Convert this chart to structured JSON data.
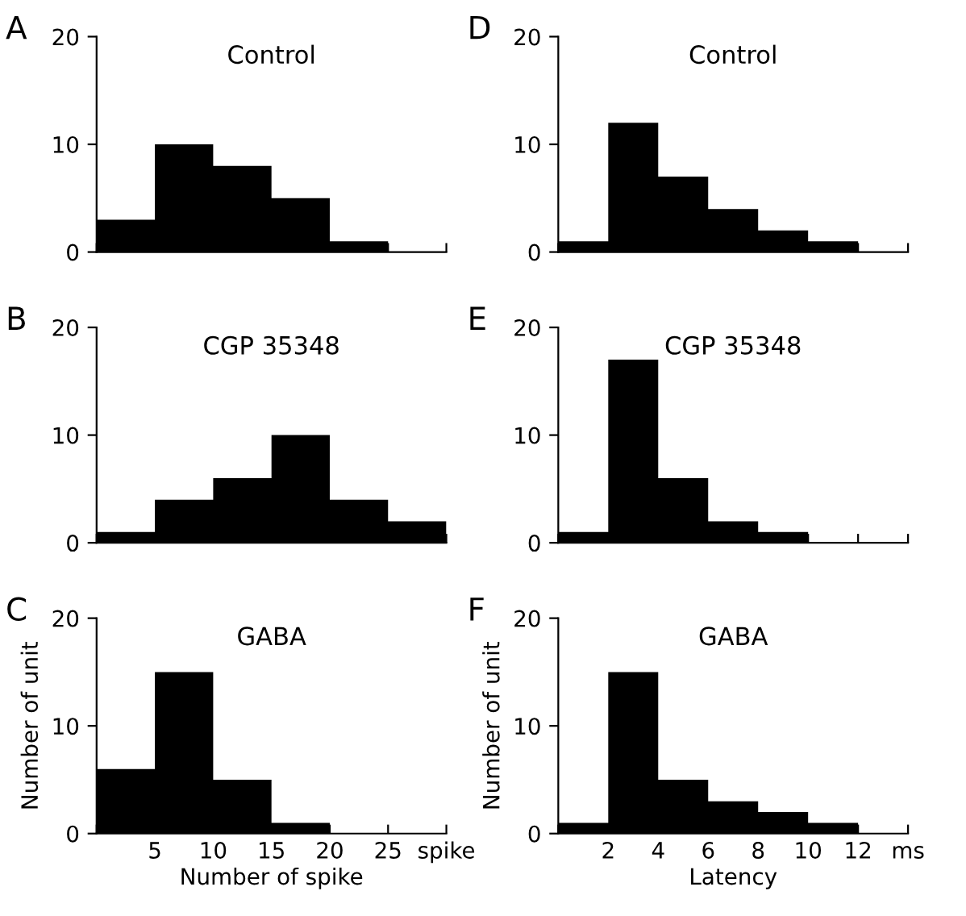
{
  "chart_data": [
    {
      "type": "histogram",
      "title": "Control",
      "annotations": [
        "A"
      ],
      "bins": [
        0,
        5,
        10,
        15,
        20,
        25,
        30
      ],
      "values": [
        3,
        10,
        8,
        5,
        1,
        0
      ],
      "color": "#000000",
      "xlim": [
        0,
        30
      ],
      "xticks": [
        {
          "value": 0,
          "label": null
        },
        {
          "value": 5,
          "label": null
        },
        {
          "value": 10,
          "label": null
        },
        {
          "value": 15,
          "label": null
        },
        {
          "value": 20,
          "label": null
        },
        {
          "value": 25,
          "label": null
        },
        {
          "value": 30,
          "label": null
        }
      ],
      "ylim": [
        0,
        20
      ],
      "yticks": [
        0,
        10,
        20
      ],
      "tick_labels": "y"
    },
    {
      "type": "histogram",
      "title": "Control",
      "annotations": [
        "D"
      ],
      "bins": [
        0,
        2,
        4,
        6,
        8,
        10,
        12,
        14
      ],
      "values": [
        1,
        12,
        7,
        4,
        2,
        1,
        0
      ],
      "color": "#000000",
      "xlim": [
        0,
        14
      ],
      "xticks": [
        {
          "value": 0,
          "label": null
        },
        {
          "value": 2,
          "label": null
        },
        {
          "value": 4,
          "label": null
        },
        {
          "value": 6,
          "label": null
        },
        {
          "value": 8,
          "label": null
        },
        {
          "value": 10,
          "label": null
        },
        {
          "value": 12,
          "label": null
        },
        {
          "value": 14,
          "label": null
        }
      ],
      "ylim": [
        0,
        20
      ],
      "yticks": [
        0,
        10,
        20
      ],
      "tick_labels": "y"
    },
    {
      "type": "histogram",
      "title": "CGP 35348",
      "annotations": [
        "B"
      ],
      "bins": [
        0,
        5,
        10,
        15,
        20,
        25,
        30
      ],
      "values": [
        1,
        4,
        6,
        10,
        4,
        2
      ],
      "color": "#000000",
      "xlim": [
        0,
        30
      ],
      "xticks": [
        {
          "value": 0,
          "label": null
        },
        {
          "value": 5,
          "label": null
        },
        {
          "value": 10,
          "label": null
        },
        {
          "value": 15,
          "label": null
        },
        {
          "value": 20,
          "label": null
        },
        {
          "value": 25,
          "label": null
        },
        {
          "value": 30,
          "label": null
        }
      ],
      "ylim": [
        0,
        20
      ],
      "yticks": [
        0,
        10,
        20
      ],
      "tick_labels": "y"
    },
    {
      "type": "histogram",
      "title": "CGP 35348",
      "annotations": [
        "E"
      ],
      "bins": [
        0,
        2,
        4,
        6,
        8,
        10,
        12,
        14
      ],
      "values": [
        1,
        17,
        6,
        2,
        1,
        0,
        0
      ],
      "color": "#000000",
      "xlim": [
        0,
        14
      ],
      "xticks": [
        {
          "value": 0,
          "label": null
        },
        {
          "value": 2,
          "label": null
        },
        {
          "value": 4,
          "label": null
        },
        {
          "value": 6,
          "label": null
        },
        {
          "value": 8,
          "label": null
        },
        {
          "value": 10,
          "label": null
        },
        {
          "value": 12,
          "label": null
        },
        {
          "value": 14,
          "label": null
        }
      ],
      "ylim": [
        0,
        20
      ],
      "yticks": [
        0,
        10,
        20
      ],
      "tick_labels": "y"
    },
    {
      "type": "histogram",
      "title": "GABA",
      "annotations": [
        "C"
      ],
      "xlabel": "Number of spike",
      "ylabel": "Number of unit",
      "bins": [
        0,
        5,
        10,
        15,
        20,
        25,
        30
      ],
      "values": [
        6,
        15,
        5,
        1,
        0,
        0
      ],
      "color": "#000000",
      "xlim": [
        0,
        30
      ],
      "xticks": [
        {
          "value": 0,
          "label": null
        },
        5,
        10,
        15,
        20,
        25,
        {
          "value": 30,
          "label": "spike"
        }
      ],
      "ylim": [
        0,
        20
      ],
      "yticks": [
        0,
        10,
        20
      ]
    },
    {
      "type": "histogram",
      "title": "GABA",
      "annotations": [
        "F"
      ],
      "xlabel": "Latency",
      "ylabel": "Number of unit",
      "bins": [
        0,
        2,
        4,
        6,
        8,
        10,
        12,
        14
      ],
      "values": [
        1,
        15,
        5,
        3,
        2,
        1,
        0
      ],
      "color": "#000000",
      "xlim": [
        0,
        14
      ],
      "xticks": [
        {
          "value": 0,
          "label": null
        },
        2,
        4,
        6,
        8,
        10,
        12,
        {
          "value": 14,
          "label": "ms"
        }
      ],
      "ylim": [
        0,
        20
      ],
      "yticks": [
        0,
        10,
        20
      ]
    }
  ]
}
